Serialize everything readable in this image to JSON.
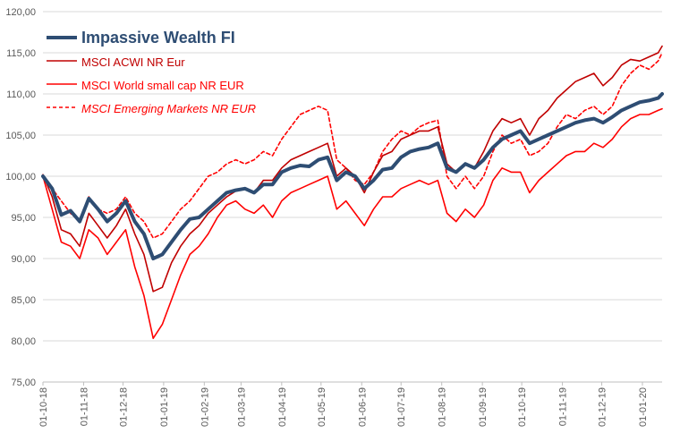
{
  "chart_data": {
    "type": "line",
    "ylim": [
      75,
      120
    ],
    "y_ticks": [
      "75,00",
      "80,00",
      "85,00",
      "90,00",
      "95,00",
      "100,00",
      "105,00",
      "110,00",
      "115,00",
      "120,00"
    ],
    "x_ticks": [
      "01-10-18",
      "01-11-18",
      "01-12-18",
      "01-01-19",
      "01-02-19",
      "01-03-19",
      "01-04-19",
      "01-05-19",
      "01-06-19",
      "01-07-19",
      "01-08-19",
      "01-09-19",
      "01-10-19",
      "01-11-19",
      "01-12-19",
      "01-01-20"
    ],
    "grid": "horizontal",
    "legend_position": "top-left",
    "series": [
      {
        "name": "Impassive Wealth FI",
        "color": "#2e4d73",
        "style": "solid-thick",
        "points": [
          [
            "01-10-18",
            100.0
          ],
          [
            "08-10-18",
            98.5
          ],
          [
            "15-10-18",
            95.3
          ],
          [
            "22-10-18",
            95.8
          ],
          [
            "29-10-18",
            94.5
          ],
          [
            "05-11-18",
            97.3
          ],
          [
            "12-11-18",
            96.0
          ],
          [
            "19-11-18",
            94.5
          ],
          [
            "26-11-18",
            95.5
          ],
          [
            "03-12-18",
            97.0
          ],
          [
            "10-12-18",
            94.5
          ],
          [
            "17-12-18",
            93.0
          ],
          [
            "24-12-18",
            90.0
          ],
          [
            "31-12-18",
            90.5
          ],
          [
            "07-01-19",
            92.0
          ],
          [
            "14-01-19",
            93.5
          ],
          [
            "21-01-19",
            94.8
          ],
          [
            "28-01-19",
            95.0
          ],
          [
            "04-02-19",
            96.0
          ],
          [
            "11-02-19",
            97.0
          ],
          [
            "18-02-19",
            98.0
          ],
          [
            "25-02-19",
            98.3
          ],
          [
            "04-03-19",
            98.5
          ],
          [
            "11-03-19",
            98.0
          ],
          [
            "18-03-19",
            99.0
          ],
          [
            "25-03-19",
            99.0
          ],
          [
            "01-04-19",
            100.5
          ],
          [
            "08-04-19",
            101.0
          ],
          [
            "15-04-19",
            101.3
          ],
          [
            "22-04-19",
            101.2
          ],
          [
            "29-04-19",
            102.0
          ],
          [
            "06-05-19",
            102.3
          ],
          [
            "13-05-19",
            99.5
          ],
          [
            "20-05-19",
            100.5
          ],
          [
            "27-05-19",
            100.0
          ],
          [
            "03-06-19",
            98.5
          ],
          [
            "10-06-19",
            99.5
          ],
          [
            "17-06-19",
            100.8
          ],
          [
            "24-06-19",
            101.0
          ],
          [
            "01-07-19",
            102.3
          ],
          [
            "08-07-19",
            103.0
          ],
          [
            "15-07-19",
            103.3
          ],
          [
            "22-07-19",
            103.5
          ],
          [
            "29-07-19",
            104.0
          ],
          [
            "05-08-19",
            101.0
          ],
          [
            "12-08-19",
            100.5
          ],
          [
            "19-08-19",
            101.5
          ],
          [
            "26-08-19",
            101.0
          ],
          [
            "02-09-19",
            102.0
          ],
          [
            "09-09-19",
            103.5
          ],
          [
            "16-09-19",
            104.5
          ],
          [
            "23-09-19",
            105.0
          ],
          [
            "30-09-19",
            105.5
          ],
          [
            "07-10-19",
            104.0
          ],
          [
            "14-10-19",
            104.5
          ],
          [
            "21-10-19",
            105.0
          ],
          [
            "28-10-19",
            105.5
          ],
          [
            "04-11-19",
            106.0
          ],
          [
            "11-11-19",
            106.5
          ],
          [
            "18-11-19",
            106.8
          ],
          [
            "25-11-19",
            107.0
          ],
          [
            "02-12-19",
            106.5
          ],
          [
            "09-12-19",
            107.2
          ],
          [
            "16-12-19",
            108.0
          ],
          [
            "23-12-19",
            108.5
          ],
          [
            "30-12-19",
            109.0
          ],
          [
            "06-01-20",
            109.2
          ],
          [
            "13-01-20",
            109.5
          ],
          [
            "16-01-20",
            110.0
          ]
        ]
      },
      {
        "name": "MSCI ACWI NR Eur",
        "color": "#c00000",
        "style": "solid",
        "points": [
          [
            "01-10-18",
            100.2
          ],
          [
            "08-10-18",
            97.5
          ],
          [
            "15-10-18",
            93.5
          ],
          [
            "22-10-18",
            93.0
          ],
          [
            "29-10-18",
            91.5
          ],
          [
            "05-11-18",
            95.5
          ],
          [
            "12-11-18",
            94.0
          ],
          [
            "19-11-18",
            92.5
          ],
          [
            "26-11-18",
            94.0
          ],
          [
            "03-12-18",
            96.0
          ],
          [
            "10-12-18",
            93.0
          ],
          [
            "17-12-18",
            90.5
          ],
          [
            "24-12-18",
            86.0
          ],
          [
            "31-12-18",
            86.5
          ],
          [
            "07-01-19",
            89.5
          ],
          [
            "14-01-19",
            91.5
          ],
          [
            "21-01-19",
            93.0
          ],
          [
            "28-01-19",
            94.0
          ],
          [
            "04-02-19",
            95.5
          ],
          [
            "11-02-19",
            96.5
          ],
          [
            "18-02-19",
            97.5
          ],
          [
            "25-02-19",
            98.2
          ],
          [
            "04-03-19",
            98.5
          ],
          [
            "11-03-19",
            98.0
          ],
          [
            "18-03-19",
            99.5
          ],
          [
            "25-03-19",
            99.5
          ],
          [
            "01-04-19",
            101.0
          ],
          [
            "08-04-19",
            102.0
          ],
          [
            "15-04-19",
            102.5
          ],
          [
            "22-04-19",
            103.0
          ],
          [
            "29-04-19",
            103.5
          ],
          [
            "06-05-19",
            104.0
          ],
          [
            "13-05-19",
            100.0
          ],
          [
            "20-05-19",
            101.0
          ],
          [
            "27-05-19",
            100.0
          ],
          [
            "03-06-19",
            98.0
          ],
          [
            "10-06-19",
            100.5
          ],
          [
            "17-06-19",
            102.5
          ],
          [
            "24-06-19",
            103.0
          ],
          [
            "01-07-19",
            104.5
          ],
          [
            "08-07-19",
            105.0
          ],
          [
            "15-07-19",
            105.5
          ],
          [
            "22-07-19",
            105.5
          ],
          [
            "29-07-19",
            106.0
          ],
          [
            "05-08-19",
            101.5
          ],
          [
            "12-08-19",
            100.5
          ],
          [
            "19-08-19",
            101.5
          ],
          [
            "26-08-19",
            101.0
          ],
          [
            "02-09-19",
            103.0
          ],
          [
            "09-09-19",
            105.5
          ],
          [
            "16-09-19",
            107.0
          ],
          [
            "23-09-19",
            106.5
          ],
          [
            "30-09-19",
            107.0
          ],
          [
            "07-10-19",
            105.0
          ],
          [
            "14-10-19",
            107.0
          ],
          [
            "21-10-19",
            108.0
          ],
          [
            "28-10-19",
            109.5
          ],
          [
            "04-11-19",
            110.5
          ],
          [
            "11-11-19",
            111.5
          ],
          [
            "18-11-19",
            112.0
          ],
          [
            "25-11-19",
            112.5
          ],
          [
            "02-12-19",
            111.0
          ],
          [
            "09-12-19",
            112.0
          ],
          [
            "16-12-19",
            113.5
          ],
          [
            "23-12-19",
            114.2
          ],
          [
            "30-12-19",
            114.0
          ],
          [
            "06-01-20",
            114.5
          ],
          [
            "13-01-20",
            115.0
          ],
          [
            "16-01-20",
            115.8
          ]
        ]
      },
      {
        "name": "MSCI World small cap NR EUR",
        "color": "#ff0000",
        "style": "solid",
        "points": [
          [
            "01-10-18",
            100.0
          ],
          [
            "08-10-18",
            96.0
          ],
          [
            "15-10-18",
            92.0
          ],
          [
            "22-10-18",
            91.5
          ],
          [
            "29-10-18",
            90.0
          ],
          [
            "05-11-18",
            93.5
          ],
          [
            "12-11-18",
            92.5
          ],
          [
            "19-11-18",
            90.5
          ],
          [
            "26-11-18",
            92.0
          ],
          [
            "03-12-18",
            93.5
          ],
          [
            "10-12-18",
            89.0
          ],
          [
            "17-12-18",
            85.5
          ],
          [
            "24-12-18",
            80.3
          ],
          [
            "31-12-18",
            82.0
          ],
          [
            "07-01-19",
            85.0
          ],
          [
            "14-01-19",
            88.0
          ],
          [
            "21-01-19",
            90.5
          ],
          [
            "28-01-19",
            91.5
          ],
          [
            "04-02-19",
            93.0
          ],
          [
            "11-02-19",
            95.0
          ],
          [
            "18-02-19",
            96.5
          ],
          [
            "25-02-19",
            97.0
          ],
          [
            "04-03-19",
            96.0
          ],
          [
            "11-03-19",
            95.5
          ],
          [
            "18-03-19",
            96.5
          ],
          [
            "25-03-19",
            95.0
          ],
          [
            "01-04-19",
            97.0
          ],
          [
            "08-04-19",
            98.0
          ],
          [
            "15-04-19",
            98.5
          ],
          [
            "22-04-19",
            99.0
          ],
          [
            "29-04-19",
            99.5
          ],
          [
            "06-05-19",
            100.0
          ],
          [
            "13-05-19",
            96.0
          ],
          [
            "20-05-19",
            97.0
          ],
          [
            "27-05-19",
            95.5
          ],
          [
            "03-06-19",
            94.0
          ],
          [
            "10-06-19",
            96.0
          ],
          [
            "17-06-19",
            97.5
          ],
          [
            "24-06-19",
            97.5
          ],
          [
            "01-07-19",
            98.5
          ],
          [
            "08-07-19",
            99.0
          ],
          [
            "15-07-19",
            99.5
          ],
          [
            "22-07-19",
            99.0
          ],
          [
            "29-07-19",
            99.5
          ],
          [
            "05-08-19",
            95.5
          ],
          [
            "12-08-19",
            94.5
          ],
          [
            "19-08-19",
            96.0
          ],
          [
            "26-08-19",
            95.0
          ],
          [
            "02-09-19",
            96.5
          ],
          [
            "09-09-19",
            99.5
          ],
          [
            "16-09-19",
            101.0
          ],
          [
            "23-09-19",
            100.5
          ],
          [
            "30-09-19",
            100.5
          ],
          [
            "07-10-19",
            98.0
          ],
          [
            "14-10-19",
            99.5
          ],
          [
            "21-10-19",
            100.5
          ],
          [
            "28-10-19",
            101.5
          ],
          [
            "04-11-19",
            102.5
          ],
          [
            "11-11-19",
            103.0
          ],
          [
            "18-11-19",
            103.0
          ],
          [
            "25-11-19",
            104.0
          ],
          [
            "02-12-19",
            103.5
          ],
          [
            "09-12-19",
            104.5
          ],
          [
            "16-12-19",
            106.0
          ],
          [
            "23-12-19",
            107.0
          ],
          [
            "30-12-19",
            107.5
          ],
          [
            "06-01-20",
            107.5
          ],
          [
            "13-01-20",
            108.0
          ],
          [
            "16-01-20",
            108.2
          ]
        ]
      },
      {
        "name": "MSCI Emerging Markets NR EUR",
        "color": "#ff0000",
        "style": "dashed",
        "points": [
          [
            "01-10-18",
            100.0
          ],
          [
            "08-10-18",
            98.5
          ],
          [
            "15-10-18",
            97.0
          ],
          [
            "22-10-18",
            95.5
          ],
          [
            "29-10-18",
            94.5
          ],
          [
            "05-11-18",
            97.5
          ],
          [
            "12-11-18",
            96.0
          ],
          [
            "19-11-18",
            95.5
          ],
          [
            "26-11-18",
            96.0
          ],
          [
            "03-12-18",
            97.5
          ],
          [
            "10-12-18",
            95.5
          ],
          [
            "17-12-18",
            94.5
          ],
          [
            "24-12-18",
            92.5
          ],
          [
            "31-12-18",
            93.0
          ],
          [
            "07-01-19",
            94.5
          ],
          [
            "14-01-19",
            96.0
          ],
          [
            "21-01-19",
            97.0
          ],
          [
            "28-01-19",
            98.5
          ],
          [
            "04-02-19",
            100.0
          ],
          [
            "11-02-19",
            100.5
          ],
          [
            "18-02-19",
            101.5
          ],
          [
            "25-02-19",
            102.0
          ],
          [
            "04-03-19",
            101.5
          ],
          [
            "11-03-19",
            102.0
          ],
          [
            "18-03-19",
            103.0
          ],
          [
            "25-03-19",
            102.5
          ],
          [
            "01-04-19",
            104.5
          ],
          [
            "08-04-19",
            106.0
          ],
          [
            "15-04-19",
            107.5
          ],
          [
            "22-04-19",
            108.0
          ],
          [
            "29-04-19",
            108.5
          ],
          [
            "06-05-19",
            108.0
          ],
          [
            "13-05-19",
            102.0
          ],
          [
            "20-05-19",
            101.0
          ],
          [
            "27-05-19",
            99.5
          ],
          [
            "03-06-19",
            99.0
          ],
          [
            "10-06-19",
            100.5
          ],
          [
            "17-06-19",
            103.0
          ],
          [
            "24-06-19",
            104.5
          ],
          [
            "01-07-19",
            105.5
          ],
          [
            "08-07-19",
            105.0
          ],
          [
            "15-07-19",
            106.0
          ],
          [
            "22-07-19",
            106.5
          ],
          [
            "29-07-19",
            106.8
          ],
          [
            "05-08-19",
            100.0
          ],
          [
            "12-08-19",
            98.5
          ],
          [
            "19-08-19",
            100.0
          ],
          [
            "26-08-19",
            98.5
          ],
          [
            "02-09-19",
            100.0
          ],
          [
            "09-09-19",
            103.0
          ],
          [
            "16-09-19",
            105.0
          ],
          [
            "23-09-19",
            104.0
          ],
          [
            "30-09-19",
            104.5
          ],
          [
            "07-10-19",
            102.5
          ],
          [
            "14-10-19",
            103.0
          ],
          [
            "21-10-19",
            104.0
          ],
          [
            "28-10-19",
            106.0
          ],
          [
            "04-11-19",
            107.5
          ],
          [
            "11-11-19",
            107.0
          ],
          [
            "18-11-19",
            108.0
          ],
          [
            "25-11-19",
            108.5
          ],
          [
            "02-12-19",
            107.5
          ],
          [
            "09-12-19",
            108.5
          ],
          [
            "16-12-19",
            111.0
          ],
          [
            "23-12-19",
            112.5
          ],
          [
            "30-12-19",
            113.5
          ],
          [
            "06-01-20",
            113.0
          ],
          [
            "13-01-20",
            114.0
          ],
          [
            "16-01-20",
            115.0
          ]
        ]
      }
    ]
  }
}
